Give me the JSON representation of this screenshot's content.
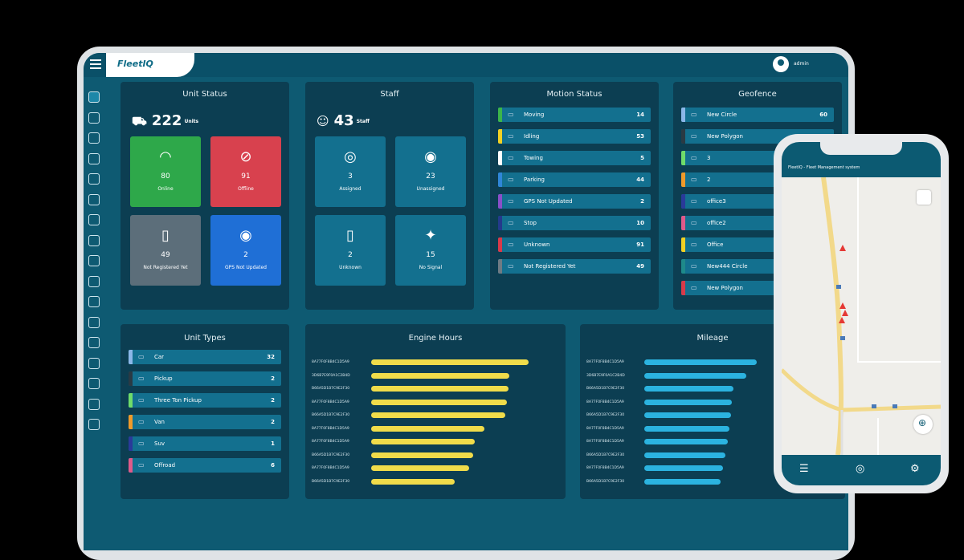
{
  "app": {
    "logo": "FleetIQ",
    "user_name": "admin"
  },
  "unit_status": {
    "title": "Unit Status",
    "count": "222",
    "unit_label": "Units",
    "tiles": [
      {
        "value": "80",
        "label": "Online",
        "color": "#2ea84a",
        "icon": "wifi-icon"
      },
      {
        "value": "91",
        "label": "Offline",
        "color": "#d8414e",
        "icon": "wifi-off-icon"
      },
      {
        "value": "49",
        "label": "Not Registered Yet",
        "color": "#5c6e7a",
        "icon": "not-registered-icon"
      },
      {
        "value": "2",
        "label": "GPS Not Updated",
        "color": "#1f6fd6",
        "icon": "gps-icon"
      }
    ]
  },
  "staff": {
    "title": "Staff",
    "count": "43",
    "unit_label": "Staff",
    "tiles": [
      {
        "value": "3",
        "label": "Assigned",
        "icon": "assigned-icon"
      },
      {
        "value": "23",
        "label": "Unassigned",
        "icon": "unassigned-icon"
      },
      {
        "value": "2",
        "label": "Unknown",
        "icon": "unknown-icon"
      },
      {
        "value": "15",
        "label": "No Signal",
        "icon": "no-signal-icon"
      }
    ]
  },
  "motion_status": {
    "title": "Motion Status",
    "items": [
      {
        "label": "Moving",
        "value": "14",
        "color": "#3cb54a"
      },
      {
        "label": "Idling",
        "value": "53",
        "color": "#f2d024"
      },
      {
        "label": "Towing",
        "value": "5",
        "color": "#ffffff"
      },
      {
        "label": "Parking",
        "value": "44",
        "color": "#2f86d8"
      },
      {
        "label": "GPS Not Updated",
        "value": "2",
        "color": "#8a4fc8"
      },
      {
        "label": "Stop",
        "value": "10",
        "color": "#243a8c"
      },
      {
        "label": "Unknown",
        "value": "91",
        "color": "#d83a4a"
      },
      {
        "label": "Not Registered Yet",
        "value": "49",
        "color": "#6f7b84"
      }
    ]
  },
  "geofence": {
    "title": "Geofence",
    "items": [
      {
        "label": "New Circle",
        "value": "60",
        "color": "#8bb7e8"
      },
      {
        "label": "New Polygon",
        "value": "",
        "color": "#2a3a44"
      },
      {
        "label": "3",
        "value": "",
        "color": "#6fdc6a"
      },
      {
        "label": "2",
        "value": "",
        "color": "#f09a2a"
      },
      {
        "label": "office3",
        "value": "",
        "color": "#2a3a9a"
      },
      {
        "label": "office2",
        "value": "",
        "color": "#e05a8a"
      },
      {
        "label": "Office",
        "value": "",
        "color": "#f2d024"
      },
      {
        "label": "New444 Circle",
        "value": "",
        "color": "#1e8a8a"
      },
      {
        "label": "New Polygon",
        "value": "",
        "color": "#d83a4a"
      }
    ]
  },
  "unit_types": {
    "title": "Unit Types",
    "items": [
      {
        "label": "Car",
        "value": "32",
        "color": "#8bb7e8"
      },
      {
        "label": "Pickup",
        "value": "2",
        "color": "#2a3a44"
      },
      {
        "label": "Three Ton Pickup",
        "value": "2",
        "color": "#6fdc6a"
      },
      {
        "label": "Van",
        "value": "2",
        "color": "#f09a2a"
      },
      {
        "label": "Suv",
        "value": "1",
        "color": "#2a3a9a"
      },
      {
        "label": "Offroad",
        "value": "6",
        "color": "#e05a8a"
      }
    ]
  },
  "engine_hours": {
    "title": "Engine Hours",
    "rows": [
      {
        "label": "8A77F0F8B4C1D5A9",
        "value": 100
      },
      {
        "label": "3D6B7E9F0A1C2B4D",
        "value": 88
      },
      {
        "label": "B66A5D1B7C9E2F30",
        "value": 87
      },
      {
        "label": "8A77F0F8B4C1D5A9",
        "value": 86
      },
      {
        "label": "B66A5D1B7C9E2F30",
        "value": 85
      },
      {
        "label": "8A77F0F8B4C1D5A9",
        "value": 72
      },
      {
        "label": "8A77F0F8B4C1D5A9",
        "value": 66
      },
      {
        "label": "B66A5D1B7C9E2F30",
        "value": 65
      },
      {
        "label": "8A77F0F8B4C1D5A9",
        "value": 62
      },
      {
        "label": "B66A5D1B7C9E2F30",
        "value": 53
      }
    ]
  },
  "mileage": {
    "title": "Mileage",
    "rows": [
      {
        "label": "8A77F0F8B4C1D5A9",
        "value": 100
      },
      {
        "label": "3D6B7E9F0A1C2B4D",
        "value": 91
      },
      {
        "label": "B66A5D1B7C9E2F30",
        "value": 79
      },
      {
        "label": "8A77F0F8B4C1D5A9",
        "value": 78
      },
      {
        "label": "B66A5D1B7C9E2F30",
        "value": 77
      },
      {
        "label": "8A77F0F8B4C1D5A9",
        "value": 76
      },
      {
        "label": "8A77F0F8B4C1D5A9",
        "value": 74
      },
      {
        "label": "B66A5D1B7C9E2F30",
        "value": 72
      },
      {
        "label": "8A77F0F8B4C1D5A9",
        "value": 70
      },
      {
        "label": "B66A5D1B7C9E2F30",
        "value": 68
      }
    ]
  },
  "phone": {
    "title": "FleetIQ - Fleet Management system"
  },
  "colors": {
    "engine_bar": "#f0dc4a",
    "mileage_bar": "#2bb3e0"
  }
}
